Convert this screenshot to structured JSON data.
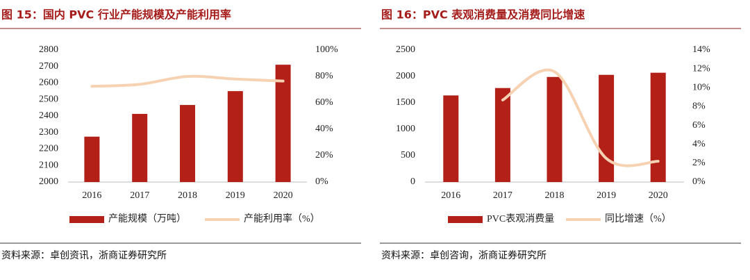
{
  "chart_data": [
    {
      "type": "bar",
      "title": "图 15：国内 PVC 行业产能规模及产能利用率",
      "source": "资料来源：卓创资讯，浙商证券研究所",
      "categories": [
        "2016",
        "2017",
        "2018",
        "2019",
        "2020"
      ],
      "series": [
        {
          "name": "产能规模（万吨）",
          "color": "#b22018",
          "values": [
            2275,
            2413,
            2467,
            2551,
            2711
          ]
        },
        {
          "name": "产能利用率（%）",
          "color": "#f6d2b2",
          "type": "line",
          "axis": "y2",
          "smooth": true,
          "values": [
            72.5,
            74,
            80,
            78,
            76.5
          ]
        }
      ],
      "ylim": [
        2000,
        2800
      ],
      "yticks": [
        2000,
        2100,
        2200,
        2300,
        2400,
        2500,
        2600,
        2700,
        2800
      ],
      "y2lim": [
        0,
        100
      ],
      "y2ticks": [
        {
          "value": 0,
          "label": "0%"
        },
        {
          "value": 20,
          "label": "20%"
        },
        {
          "value": 40,
          "label": "40%"
        },
        {
          "value": 60,
          "label": "60%"
        },
        {
          "value": 80,
          "label": "80%"
        },
        {
          "value": 100,
          "label": "100%"
        }
      ]
    },
    {
      "type": "bar",
      "title": "图 16：PVC 表观消费量及消费同比增速",
      "source": "资料来源：卓创咨询，浙商证券研究所",
      "categories": [
        "2016",
        "2017",
        "2018",
        "2019",
        "2020"
      ],
      "series": [
        {
          "name": "PVC表观消费量",
          "color": "#b22018",
          "values": [
            1640,
            1780,
            1990,
            2030,
            2070
          ]
        },
        {
          "name": "同比增速（%）",
          "color": "#f6d2b2",
          "type": "line",
          "axis": "y2",
          "smooth": true,
          "values": [
            null,
            8.7,
            11.7,
            2.5,
            2.2
          ]
        }
      ],
      "ylim": [
        0,
        2500
      ],
      "yticks": [
        0,
        500,
        1000,
        1500,
        2000,
        2500
      ],
      "y2lim": [
        0,
        14
      ],
      "y2ticks": [
        {
          "value": 0,
          "label": "0%"
        },
        {
          "value": 2,
          "label": "2%"
        },
        {
          "value": 4,
          "label": "4%"
        },
        {
          "value": 6,
          "label": "6%"
        },
        {
          "value": 8,
          "label": "8%"
        },
        {
          "value": 10,
          "label": "10%"
        },
        {
          "value": 12,
          "label": "12%"
        },
        {
          "value": 14,
          "label": "14%"
        }
      ]
    }
  ]
}
